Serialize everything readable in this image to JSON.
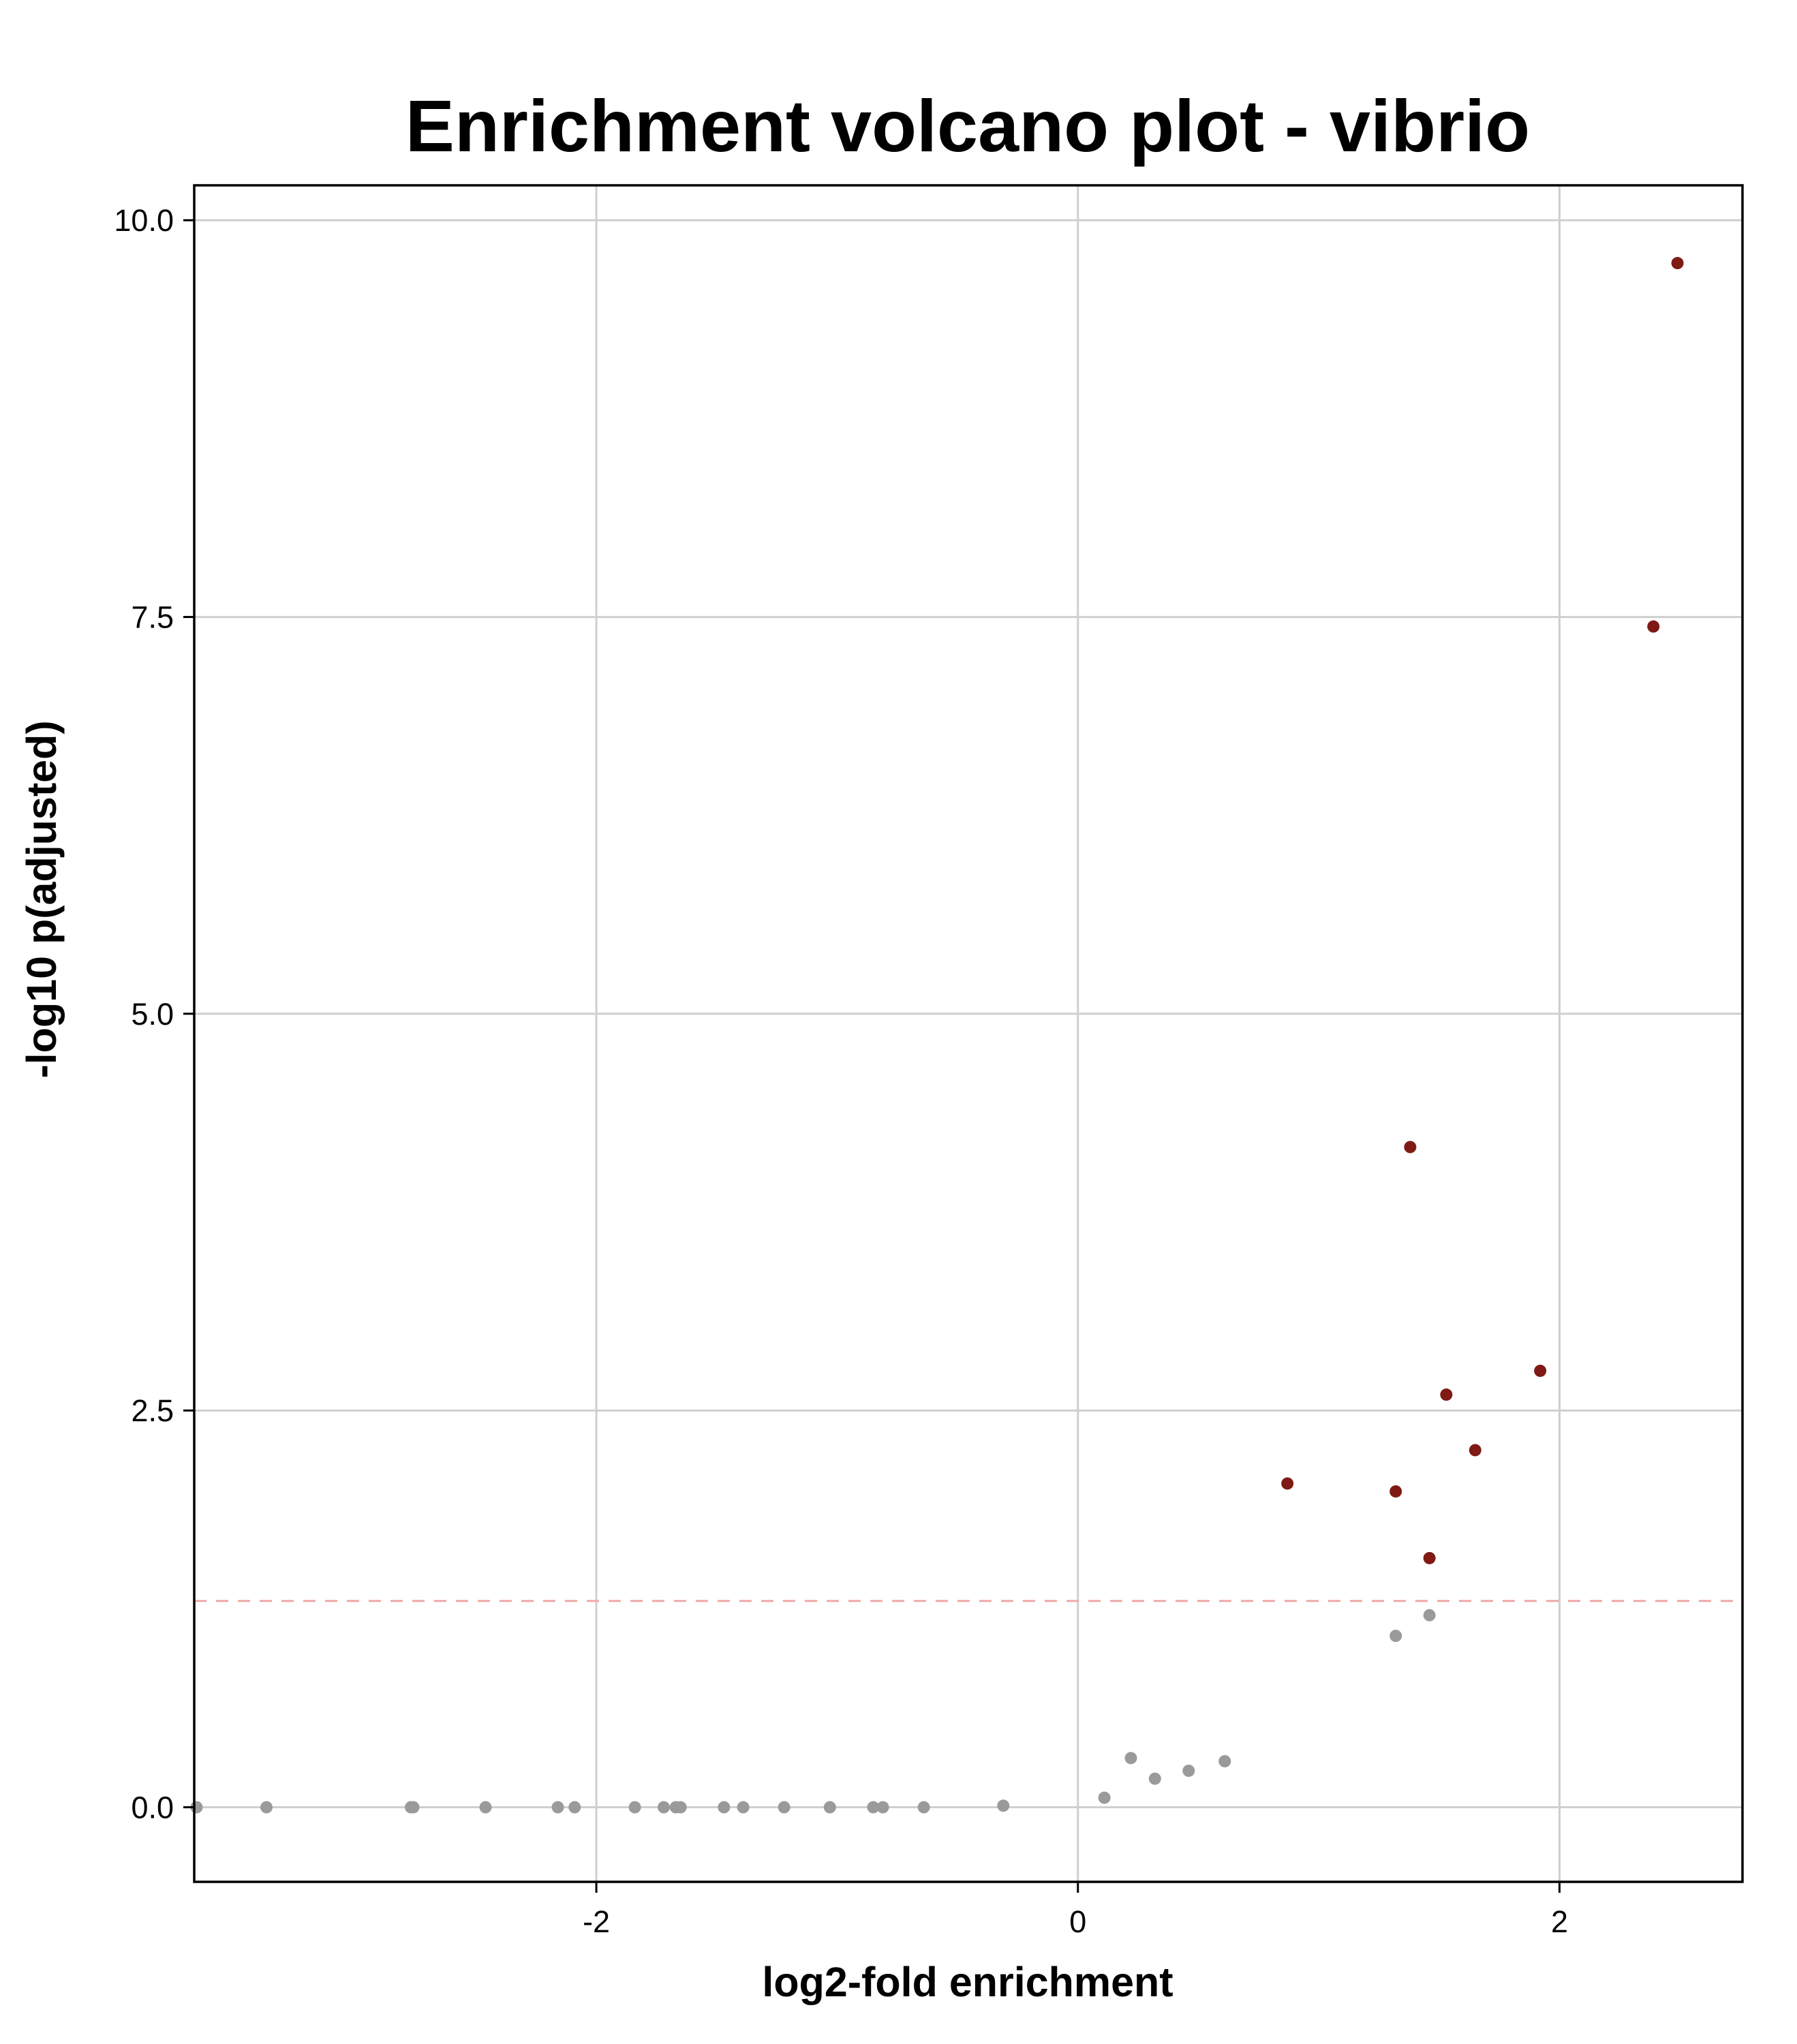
{
  "chart_data": {
    "type": "scatter",
    "title": "Enrichment volcano plot -  vibrio",
    "xlabel": "log2-fold enrichment",
    "ylabel": "-log10 p(adjusted)",
    "xlim": [
      -3.67,
      2.76
    ],
    "ylim": [
      -0.47,
      10.22
    ],
    "xticks": [
      -2,
      0,
      2
    ],
    "xtick_labels": [
      "-2",
      "0",
      "2"
    ],
    "yticks": [
      0,
      2.5,
      5,
      7.5,
      10
    ],
    "ytick_labels": [
      "0.0",
      "2.5",
      "5.0",
      "7.5",
      "10.0"
    ],
    "grid": true,
    "significance_threshold": 1.3,
    "colors": {
      "significant": "#7f1a14",
      "not_significant": "#9a9a9a",
      "threshold_line": "#f0a9a9",
      "grid": "#cfcfcf"
    },
    "series": [
      {
        "significant": false,
        "points": [
          [
            -3.66,
            0
          ],
          [
            -3.37,
            0
          ],
          [
            -2.77,
            0
          ],
          [
            -2.76,
            0
          ],
          [
            -2.46,
            0
          ],
          [
            -2.16,
            0
          ],
          [
            -2.09,
            0
          ],
          [
            -1.84,
            0
          ],
          [
            -1.72,
            0
          ],
          [
            -1.67,
            0
          ],
          [
            -1.65,
            0
          ],
          [
            -1.47,
            0
          ],
          [
            -1.39,
            0
          ],
          [
            -1.22,
            0
          ],
          [
            -1.03,
            0
          ],
          [
            -0.85,
            0
          ],
          [
            -0.81,
            0
          ],
          [
            -0.64,
            0
          ],
          [
            -0.31,
            0.01
          ],
          [
            0.11,
            0.06
          ],
          [
            0.22,
            0.31
          ],
          [
            0.32,
            0.18
          ],
          [
            0.46,
            0.23
          ],
          [
            0.61,
            0.29
          ],
          [
            1.32,
            1.08
          ],
          [
            1.46,
            1.21
          ]
        ]
      },
      {
        "significant": true,
        "points": [
          [
            0.87,
            2.04
          ],
          [
            1.32,
            1.99
          ],
          [
            1.38,
            4.16
          ],
          [
            1.46,
            1.57
          ],
          [
            1.53,
            2.6
          ],
          [
            1.65,
            2.25
          ],
          [
            1.92,
            2.75
          ],
          [
            2.39,
            7.44
          ],
          [
            2.49,
            9.73
          ]
        ]
      }
    ]
  }
}
